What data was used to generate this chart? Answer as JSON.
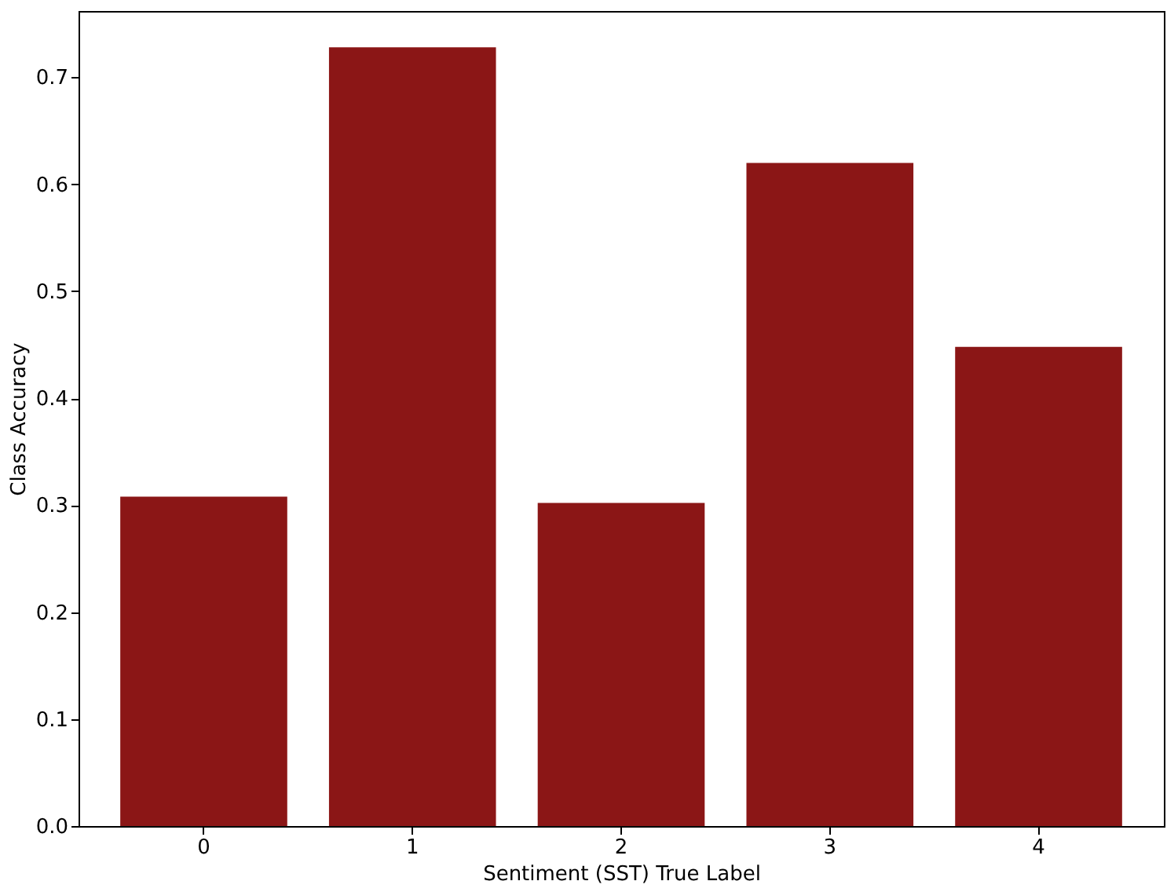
{
  "chart_data": {
    "type": "bar",
    "xlabel": "Sentiment (SST) True Label",
    "ylabel": "Class Accuracy",
    "categories": [
      "0",
      "1",
      "2",
      "3",
      "4"
    ],
    "values": [
      0.308,
      0.728,
      0.302,
      0.62,
      0.448
    ],
    "color": "#8b1616",
    "ylim": [
      0,
      0.762
    ],
    "yticks": [
      {
        "value": 0,
        "label": "0.0"
      },
      0.1,
      0.2,
      0.3,
      0.4,
      0.5,
      0.6,
      0.7
    ],
    "grid": false
  }
}
